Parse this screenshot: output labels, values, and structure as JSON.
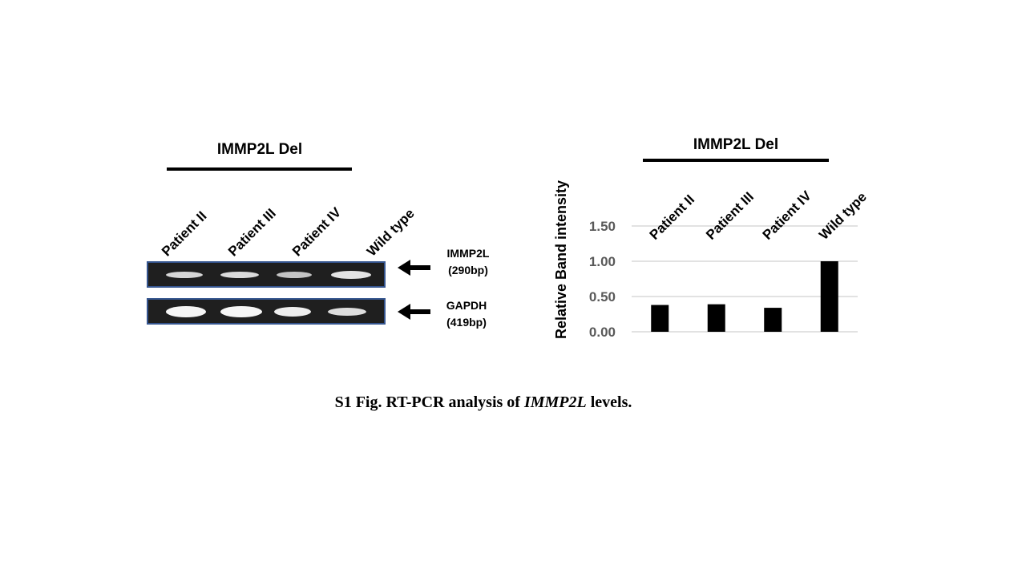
{
  "gel_panel": {
    "group_title": "IMMP2L Del",
    "lanes": [
      "Patient II",
      "Patient III",
      "Patient IV",
      "Wild type"
    ],
    "bands": [
      {
        "label_line1": "IMMP2L",
        "label_line2": "(290bp)",
        "band_color": "#d9d9d9"
      },
      {
        "label_line1": "GAPDH",
        "label_line2": "(419bp)",
        "band_color": "#f2f2f2"
      }
    ]
  },
  "chart_data": {
    "type": "bar",
    "group_title": "IMMP2L Del",
    "categories": [
      "Patient II",
      "Patient III",
      "Patient IV",
      "Wild type"
    ],
    "values": [
      0.38,
      0.39,
      0.34,
      1.0
    ],
    "ylabel": "Relative Band intensity",
    "xlabel": "",
    "yticks": [
      "0.00",
      "0.50",
      "1.00",
      "1.50"
    ],
    "ylim": [
      0,
      1.5
    ],
    "grid": true,
    "bar_color": "#000000"
  },
  "caption": {
    "prefix": "S1 Fig. RT-PCR analysis of ",
    "italic": "IMMP2L",
    "suffix": " levels."
  }
}
